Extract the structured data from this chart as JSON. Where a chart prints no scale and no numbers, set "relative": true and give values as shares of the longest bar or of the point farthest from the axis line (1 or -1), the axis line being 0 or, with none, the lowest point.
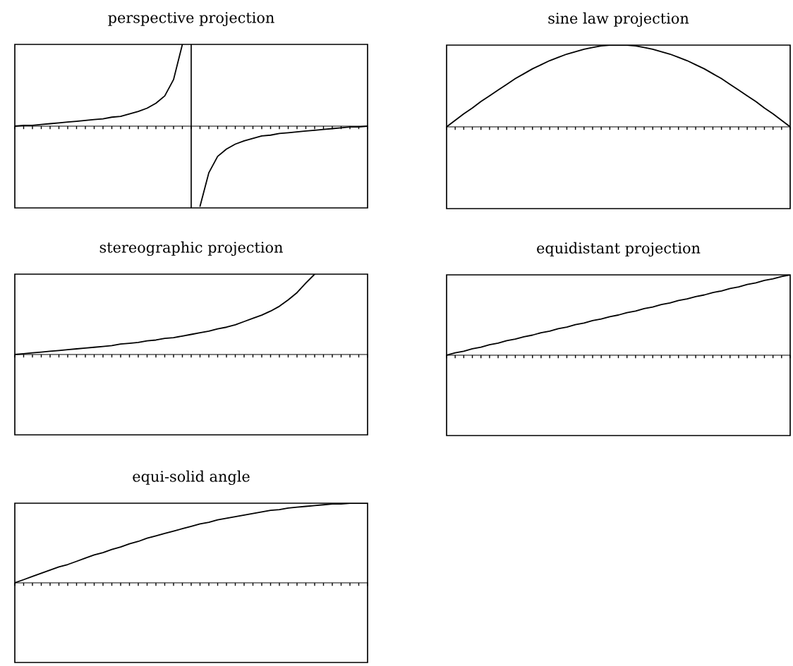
{
  "chart_data": [
    {
      "type": "line",
      "title": "perspective projection",
      "relative": true,
      "color": "#000000",
      "categories": [
        null,
        null,
        null,
        null,
        null,
        null,
        null,
        null,
        null,
        null,
        null,
        null,
        null,
        null,
        null,
        null,
        null,
        null,
        null,
        null,
        null,
        null,
        null,
        null,
        null,
        null,
        null,
        null,
        null,
        null,
        null,
        null,
        null,
        null,
        null,
        null,
        null,
        null,
        null,
        null,
        null
      ],
      "values": [
        0,
        0.01,
        0.01,
        0.02,
        0.03,
        0.04,
        0.05,
        0.06,
        0.07,
        0.08,
        0.09,
        0.11,
        0.12,
        0.15,
        0.18,
        0.22,
        0.28,
        0.37,
        0.57,
        1.0,
        null,
        -0.98,
        -0.57,
        -0.37,
        -0.28,
        -0.22,
        -0.18,
        -0.15,
        -0.12,
        -0.11,
        -0.09,
        -0.08,
        -0.07,
        -0.06,
        -0.05,
        -0.04,
        -0.03,
        -0.02,
        -0.01,
        -0.01,
        0
      ]
    },
    {
      "type": "line",
      "title": "sine law projection",
      "relative": true,
      "color": "#000000",
      "categories": [
        null,
        null,
        null,
        null,
        null,
        null,
        null,
        null,
        null,
        null,
        null,
        null,
        null,
        null,
        null,
        null,
        null,
        null,
        null,
        null,
        null,
        null,
        null,
        null,
        null,
        null,
        null,
        null,
        null,
        null,
        null,
        null,
        null,
        null,
        null,
        null,
        null,
        null,
        null,
        null,
        null
      ],
      "values": [
        0,
        0.08,
        0.16,
        0.23,
        0.31,
        0.38,
        0.45,
        0.52,
        0.59,
        0.65,
        0.71,
        0.76,
        0.81,
        0.85,
        0.89,
        0.92,
        0.95,
        0.97,
        0.99,
        1.0,
        1.0,
        1.0,
        0.99,
        0.97,
        0.95,
        0.92,
        0.89,
        0.85,
        0.81,
        0.76,
        0.71,
        0.65,
        0.59,
        0.52,
        0.45,
        0.38,
        0.31,
        0.23,
        0.16,
        0.08,
        0
      ]
    },
    {
      "type": "line",
      "title": "stereographic projection",
      "relative": true,
      "color": "#000000",
      "categories": [
        null,
        null,
        null,
        null,
        null,
        null,
        null,
        null,
        null,
        null,
        null,
        null,
        null,
        null,
        null,
        null,
        null,
        null,
        null,
        null,
        null,
        null,
        null,
        null,
        null,
        null,
        null,
        null,
        null,
        null,
        null,
        null,
        null,
        null,
        null,
        null,
        null,
        null,
        null,
        null,
        null
      ],
      "values": [
        0,
        0.01,
        0.02,
        0.03,
        0.04,
        0.05,
        0.06,
        0.07,
        0.08,
        0.09,
        0.1,
        0.11,
        0.13,
        0.14,
        0.15,
        0.17,
        0.18,
        0.2,
        0.21,
        0.23,
        0.25,
        0.27,
        0.29,
        0.32,
        0.34,
        0.37,
        0.41,
        0.45,
        0.49,
        0.54,
        0.6,
        0.68,
        0.77,
        0.89,
        1.0,
        null,
        null,
        null,
        null,
        null,
        null
      ]
    },
    {
      "type": "line",
      "title": "equidistant projection",
      "relative": true,
      "color": "#000000",
      "categories": [
        null,
        null,
        null,
        null,
        null,
        null,
        null,
        null,
        null,
        null,
        null,
        null,
        null,
        null,
        null,
        null,
        null,
        null,
        null,
        null,
        null,
        null,
        null,
        null,
        null,
        null,
        null,
        null,
        null,
        null,
        null,
        null,
        null,
        null,
        null,
        null,
        null,
        null,
        null,
        null,
        null
      ],
      "values": [
        0,
        0.03,
        0.05,
        0.08,
        0.1,
        0.13,
        0.15,
        0.18,
        0.2,
        0.23,
        0.25,
        0.28,
        0.3,
        0.33,
        0.35,
        0.38,
        0.4,
        0.43,
        0.45,
        0.48,
        0.5,
        0.53,
        0.55,
        0.58,
        0.6,
        0.63,
        0.65,
        0.68,
        0.7,
        0.73,
        0.75,
        0.78,
        0.8,
        0.83,
        0.85,
        0.88,
        0.9,
        0.93,
        0.95,
        0.98,
        1
      ]
    },
    {
      "type": "line",
      "title": "equi-solid angle",
      "relative": true,
      "color": "#000000",
      "categories": [
        null,
        null,
        null,
        null,
        null,
        null,
        null,
        null,
        null,
        null,
        null,
        null,
        null,
        null,
        null,
        null,
        null,
        null,
        null,
        null,
        null,
        null,
        null,
        null,
        null,
        null,
        null,
        null,
        null,
        null,
        null,
        null,
        null,
        null,
        null,
        null,
        null,
        null,
        null,
        null,
        null
      ],
      "values": [
        0,
        0.04,
        0.08,
        0.12,
        0.16,
        0.2,
        0.23,
        0.27,
        0.31,
        0.35,
        0.38,
        0.42,
        0.45,
        0.49,
        0.52,
        0.56,
        0.59,
        0.62,
        0.65,
        0.68,
        0.71,
        0.74,
        0.76,
        0.79,
        0.81,
        0.83,
        0.85,
        0.87,
        0.89,
        0.91,
        0.92,
        0.94,
        0.95,
        0.96,
        0.97,
        0.98,
        0.99,
        0.99,
        1.0,
        1.0,
        1
      ]
    }
  ]
}
